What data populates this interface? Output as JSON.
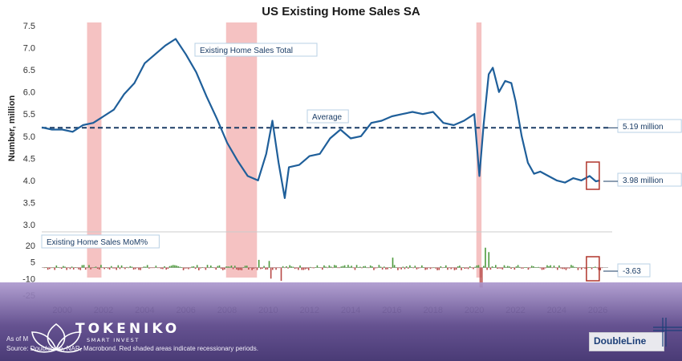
{
  "chart_data": [
    {
      "type": "line",
      "title": "US Existing Home Sales SA",
      "ylabel": "Number, million",
      "xlim": [
        1999,
        2026.5
      ],
      "ylim": [
        3.0,
        7.5
      ],
      "y_ticks": [
        "7.5",
        "7.0",
        "6.5",
        "6.0",
        "5.5",
        "5.0",
        "4.5",
        "4.0",
        "3.5",
        "3.0"
      ],
      "grid": false,
      "series": [
        {
          "name": "Existing Home Sales Total",
          "x": [
            1999.0,
            1999.5,
            2000.0,
            2000.5,
            2001.0,
            2001.5,
            2002.0,
            2002.5,
            2003.0,
            2003.5,
            2004.0,
            2004.5,
            2005.0,
            2005.5,
            2006.0,
            2006.5,
            2007.0,
            2007.5,
            2008.0,
            2008.5,
            2009.0,
            2009.5,
            2009.9,
            2010.2,
            2010.5,
            2010.8,
            2011.0,
            2011.5,
            2012.0,
            2012.5,
            2013.0,
            2013.5,
            2014.0,
            2014.5,
            2015.0,
            2015.5,
            2016.0,
            2016.5,
            2017.0,
            2017.5,
            2018.0,
            2018.5,
            2019.0,
            2019.5,
            2020.0,
            2020.25,
            2020.45,
            2020.7,
            2020.9,
            2021.2,
            2021.5,
            2021.8,
            2022.0,
            2022.3,
            2022.6,
            2022.9,
            2023.2,
            2023.6,
            2024.0,
            2024.4,
            2024.8,
            2025.2,
            2025.6,
            2025.9,
            2026.1
          ],
          "y": [
            5.2,
            5.15,
            5.15,
            5.1,
            5.25,
            5.3,
            5.45,
            5.6,
            5.95,
            6.2,
            6.65,
            6.85,
            7.05,
            7.2,
            6.85,
            6.45,
            5.9,
            5.4,
            4.85,
            4.45,
            4.1,
            4.0,
            4.6,
            5.35,
            4.4,
            3.6,
            4.3,
            4.35,
            4.55,
            4.6,
            4.95,
            5.15,
            4.95,
            5.0,
            5.3,
            5.35,
            5.45,
            5.5,
            5.55,
            5.5,
            5.55,
            5.3,
            5.25,
            5.35,
            5.5,
            4.1,
            5.25,
            6.4,
            6.55,
            6.0,
            6.25,
            6.2,
            5.8,
            5.0,
            4.4,
            4.15,
            4.2,
            4.1,
            4.0,
            3.95,
            4.05,
            4.0,
            4.1,
            3.98,
            4.0
          ]
        },
        {
          "name": "Average",
          "x": [
            1999.0,
            2026.5
          ],
          "y": [
            5.19,
            5.19
          ]
        }
      ],
      "annotations": [
        {
          "text": "Existing Home Sales Total"
        },
        {
          "text": "Average"
        },
        {
          "text": "5.19 million"
        },
        {
          "text": "3.98 million"
        }
      ],
      "recessions": [
        [
          2001.2,
          2001.9
        ],
        [
          2007.95,
          2009.45
        ],
        [
          2020.1,
          2020.35
        ]
      ]
    },
    {
      "type": "bar",
      "title": "Existing Home Sales MoM%",
      "y_ticks": [
        "20",
        "5",
        "-10",
        "-25"
      ],
      "x_ticks": [
        "2000",
        "2002",
        "2004",
        "2006",
        "2008",
        "2010",
        "2012",
        "2014",
        "2016",
        "2018",
        "2020",
        "2022",
        "2024",
        "2026"
      ],
      "ylim": [
        -25,
        20
      ],
      "notable_bars": [
        {
          "x": 2009.5,
          "value": 7
        },
        {
          "x": 2010.0,
          "value": 6
        },
        {
          "x": 2010.6,
          "value": -12
        },
        {
          "x": 2010.1,
          "value": -10
        },
        {
          "x": 2016.0,
          "value": 9
        },
        {
          "x": 2020.3,
          "value": -18
        },
        {
          "x": 2020.5,
          "value": 18
        },
        {
          "x": 2020.7,
          "value": 14
        }
      ],
      "latest_label": "-3.63"
    }
  ],
  "colors": {
    "line": "#1f5f9a",
    "recession": "#f2b3b3",
    "bar_positive": "#4c9a3c",
    "bar_negative": "#b84a48",
    "highlight_box": "#b0352c"
  },
  "watermark": {
    "brand": "TOKENIKO",
    "tagline": "SMART INVEST"
  },
  "footer": {
    "as_of": "As of M",
    "source": "Source: DoubleLine, NAR, Macrobond. Red shaded areas indicate recessionary periods.",
    "logo": "DoubleLine"
  }
}
